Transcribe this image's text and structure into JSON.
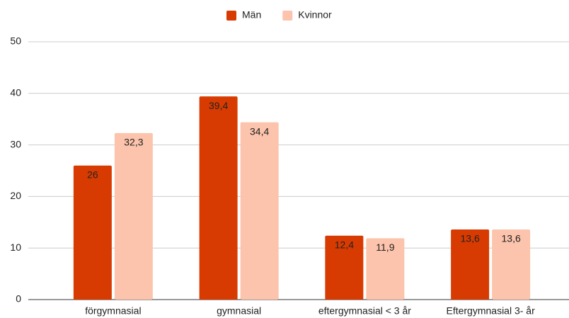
{
  "chart_data": {
    "type": "bar",
    "categories": [
      "förgymnasial",
      "gymnasial",
      "eftergymnasial < 3 år",
      "Eftergymnasial 3- år"
    ],
    "series": [
      {
        "name": "Män",
        "color": "#d83b01",
        "values": [
          26,
          39.4,
          12.4,
          13.6
        ],
        "value_labels": [
          "26",
          "39,4",
          "12,4",
          "13,6"
        ]
      },
      {
        "name": "Kvinnor",
        "color": "#fcc4ac",
        "values": [
          32.3,
          34.4,
          11.9,
          13.6
        ],
        "value_labels": [
          "32,3",
          "34,4",
          "11,9",
          "13,6"
        ]
      }
    ],
    "ylim": [
      0,
      50
    ],
    "yticks": [
      0,
      10,
      20,
      30,
      40,
      50
    ],
    "grid": true,
    "legend": "top"
  }
}
